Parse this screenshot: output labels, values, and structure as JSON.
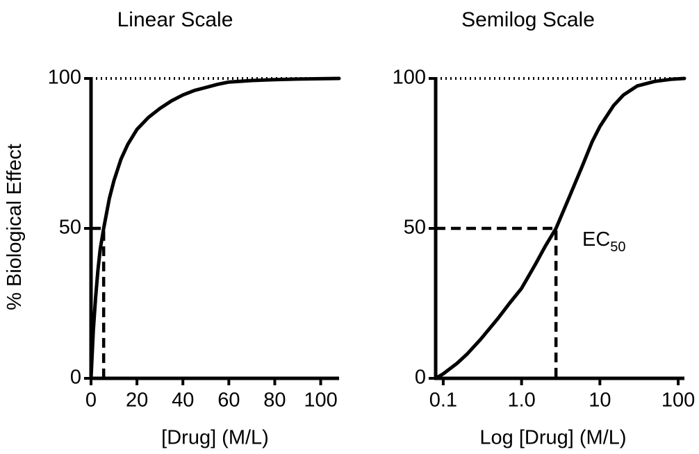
{
  "ylabel": "% Biological Effect",
  "chart_data": [
    {
      "type": "line",
      "title": "Linear Scale",
      "xlabel": "[Drug] (M/L)",
      "ylabel": "% Biological Effect",
      "x_scale": "linear",
      "xlim": [
        0,
        110
      ],
      "ylim": [
        0,
        100
      ],
      "x_ticks": [
        0,
        20,
        40,
        60,
        80,
        100
      ],
      "x_tick_labels": [
        "0",
        "20",
        "40",
        "60",
        "80",
        "100"
      ],
      "y_ticks": [
        0,
        50,
        100
      ],
      "y_tick_labels": [
        "0",
        "50",
        "100"
      ],
      "max_line": 100,
      "ec50": 5.5,
      "series": [
        {
          "x": [
            0,
            1,
            2,
            3,
            4,
            5.5,
            8,
            10,
            13,
            16,
            20,
            25,
            30,
            35,
            40,
            45,
            50,
            55,
            60,
            70,
            80,
            90,
            100,
            108
          ],
          "y": [
            0,
            16,
            27,
            36,
            43,
            50,
            60,
            66,
            73,
            78,
            83,
            87,
            90,
            92.5,
            94.5,
            96,
            97,
            98,
            98.8,
            99.3,
            99.6,
            99.8,
            99.9,
            100
          ]
        }
      ]
    },
    {
      "type": "line",
      "title": "Semilog Scale",
      "xlabel": "Log [Drug] (M/L)",
      "ylabel": "",
      "x_scale": "log",
      "xlim": [
        0.08,
        120
      ],
      "ylim": [
        0,
        100
      ],
      "x_ticks": [
        0.1,
        1,
        10,
        100
      ],
      "x_tick_labels": [
        "0.1",
        "1.0",
        "10",
        "100"
      ],
      "y_ticks": [
        0,
        50,
        100
      ],
      "y_tick_labels": [
        "0",
        "50",
        "100"
      ],
      "max_line": 100,
      "ec50": 2.75,
      "annotation": {
        "text": "EC",
        "subscript": "50"
      },
      "series": [
        {
          "x": [
            0.08,
            0.1,
            0.15,
            0.2,
            0.3,
            0.5,
            0.7,
            1.0,
            1.5,
            2.0,
            2.75,
            4,
            6,
            8,
            10,
            15,
            20,
            30,
            50,
            80,
            120
          ],
          "y": [
            0,
            1.5,
            5,
            8,
            13,
            20,
            25,
            30,
            38,
            44,
            50,
            60,
            71,
            79,
            84,
            91,
            94.5,
            97.5,
            99,
            99.7,
            100
          ]
        }
      ]
    }
  ]
}
